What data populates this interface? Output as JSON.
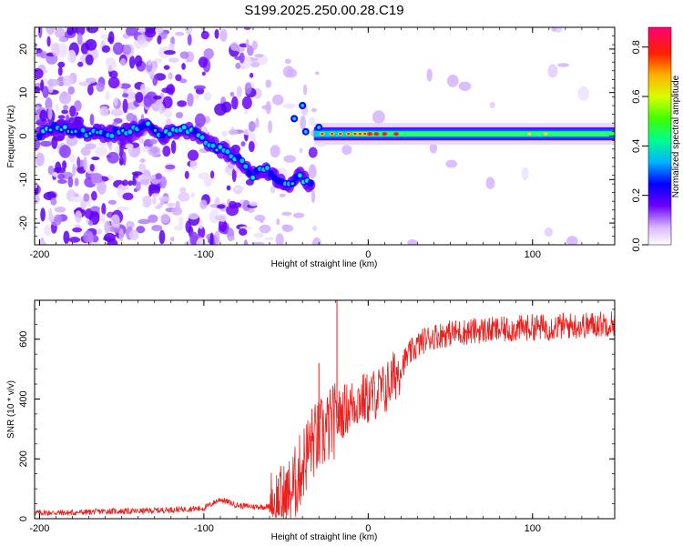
{
  "title": "S199.2025.250.00.28.C19",
  "colors": {
    "snr_line": "#e8201e",
    "axes": "#000000",
    "background": "#ffffff"
  },
  "colorbar": {
    "label": "Normalized spectral amplitude",
    "ticks": [
      "0.0",
      "0.2",
      "0.4",
      "0.6",
      "0.8"
    ],
    "range": [
      0,
      0.88
    ]
  },
  "chart_data": [
    {
      "type": "heatmap",
      "name": "spectrogram",
      "xlabel": "Height of straight line (km)",
      "ylabel": "Frequency (Hz)",
      "xlim": [
        -203,
        150
      ],
      "ylim": [
        -25,
        25
      ],
      "xticks": [
        -200,
        -100,
        0,
        100
      ],
      "yticks": [
        -20,
        -10,
        0,
        10,
        20
      ],
      "xtick_labels": [
        "-200",
        "-100",
        "0",
        "100"
      ],
      "ytick_labels": [
        "-20",
        "-10",
        "0",
        "10",
        "20"
      ],
      "ridge": [
        {
          "x": -198,
          "y": 1.5
        },
        {
          "x": -185,
          "y": 2
        },
        {
          "x": -175,
          "y": 1
        },
        {
          "x": -160,
          "y": 0.5
        },
        {
          "x": -145,
          "y": 1
        },
        {
          "x": -135,
          "y": 2.5
        },
        {
          "x": -125,
          "y": 0
        },
        {
          "x": -115,
          "y": 1.5
        },
        {
          "x": -105,
          "y": 1
        },
        {
          "x": -95,
          "y": -2
        },
        {
          "x": -85,
          "y": -4
        },
        {
          "x": -77,
          "y": -6
        },
        {
          "x": -70,
          "y": -9
        },
        {
          "x": -63,
          "y": -7.5
        },
        {
          "x": -55,
          "y": -10
        },
        {
          "x": -48,
          "y": -11
        },
        {
          "x": -42,
          "y": -9
        },
        {
          "x": -35,
          "y": -11.5
        },
        {
          "x": -33,
          "y": -1
        },
        {
          "x": -25,
          "y": 0
        },
        {
          "x": -15,
          "y": 0.5
        },
        {
          "x": -5,
          "y": 1
        },
        {
          "x": 0,
          "y": 2
        },
        {
          "x": 20,
          "y": 1
        },
        {
          "x": 60,
          "y": 0.5
        },
        {
          "x": 100,
          "y": 0.5
        },
        {
          "x": 150,
          "y": 0.5
        }
      ]
    },
    {
      "type": "line",
      "name": "snr",
      "xlabel": "Height of straight line (km)",
      "ylabel": "SNR (10 * v/v)",
      "xlim": [
        -203,
        150
      ],
      "ylim": [
        0,
        730
      ],
      "xticks": [
        -200,
        -100,
        0,
        100
      ],
      "yticks": [
        0,
        200,
        400,
        600
      ],
      "xtick_labels": [
        "-200",
        "-100",
        "0",
        "100"
      ],
      "ytick_labels": [
        "0",
        "200",
        "400",
        "600"
      ],
      "series": [
        {
          "name": "SNR",
          "x": [
            -203,
            -180,
            -160,
            -140,
            -120,
            -100,
            -90,
            -80,
            -70,
            -60,
            -50,
            -45,
            -40,
            -35,
            -30,
            -25,
            -20,
            -15,
            -10,
            -5,
            0,
            5,
            10,
            15,
            20,
            25,
            30,
            35,
            40,
            50,
            60,
            70,
            80,
            90,
            100,
            110,
            120,
            130,
            140,
            150
          ],
          "values": [
            20,
            20,
            25,
            25,
            30,
            35,
            65,
            45,
            40,
            40,
            60,
            110,
            180,
            250,
            270,
            300,
            330,
            360,
            380,
            400,
            400,
            420,
            430,
            470,
            510,
            550,
            580,
            600,
            610,
            620,
            625,
            630,
            630,
            635,
            640,
            640,
            645,
            645,
            650,
            655
          ]
        }
      ],
      "peaks": [
        {
          "x": -19,
          "y": 730
        },
        {
          "x": -30,
          "y": 520
        }
      ]
    }
  ]
}
